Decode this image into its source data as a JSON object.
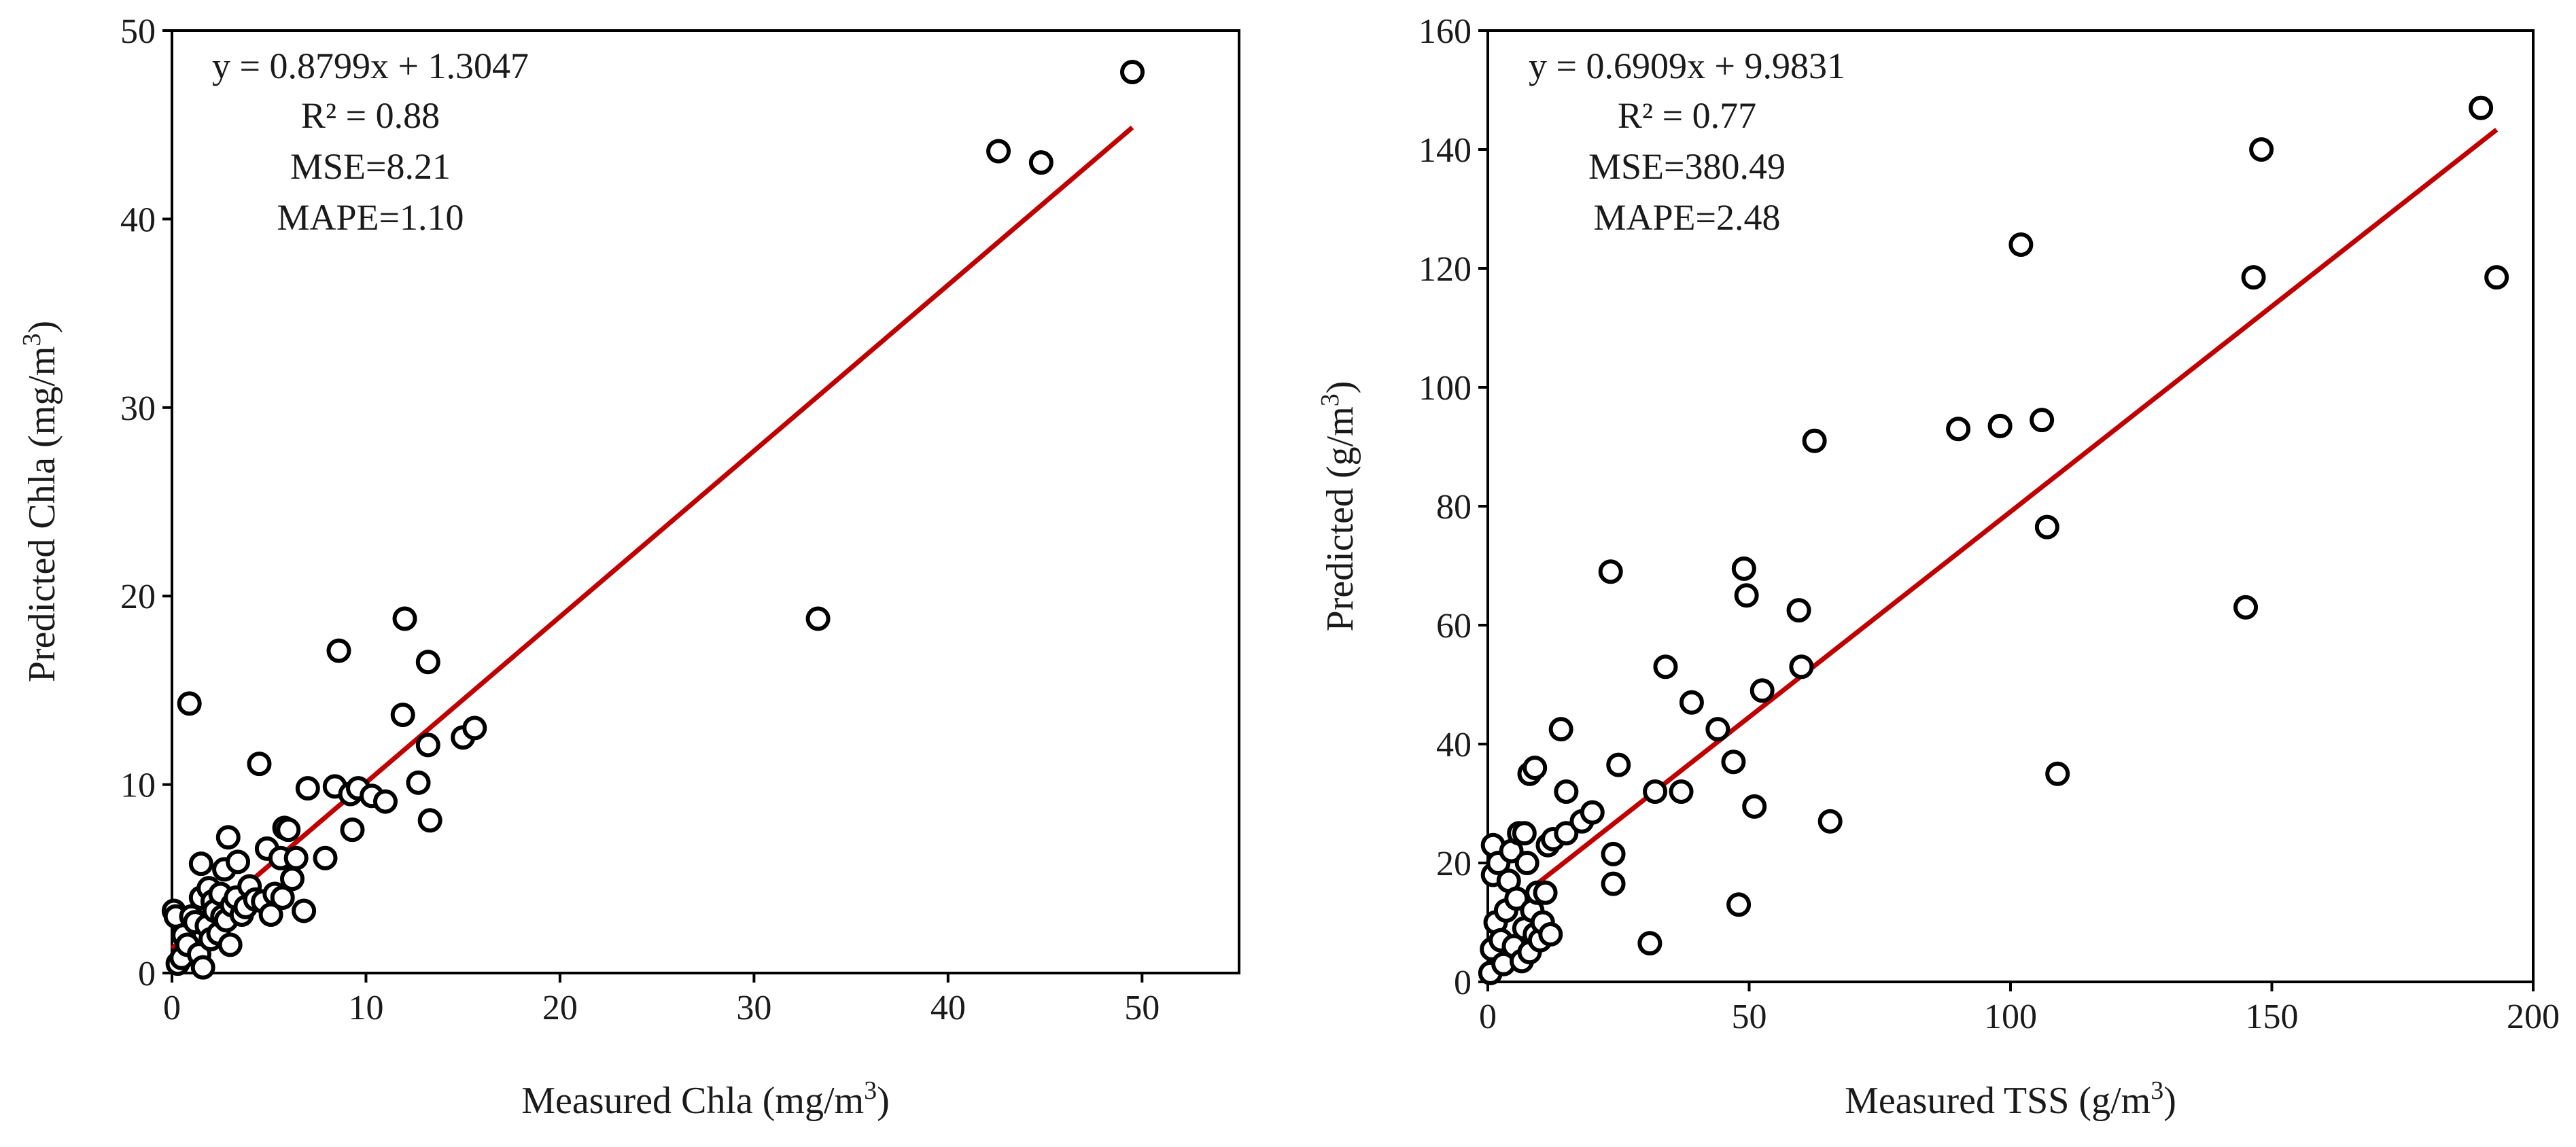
{
  "chart_data": [
    {
      "type": "scatter",
      "id": "chla",
      "xlabel": "Measured Chla (mg/m",
      "xlabel_sup": "3",
      "xlabel_end": ")",
      "ylabel": "Predicted Chla (mg/m",
      "ylabel_sup": "3",
      "ylabel_end": ")",
      "xlim": [
        0,
        55
      ],
      "ylim": [
        0,
        50
      ],
      "xticks": [
        0,
        10,
        20,
        30,
        40,
        50
      ],
      "yticks": [
        0,
        10,
        20,
        30,
        40,
        50
      ],
      "fit": {
        "slope": 0.8799,
        "intercept": 1.3047,
        "x_range": [
          0,
          49.5
        ],
        "color": "#c00000"
      },
      "annotations": [
        "y = 0.8799x + 1.3047",
        "R² = 0.88",
        "MSE=8.21",
        "MAPE=1.10"
      ],
      "points": [
        [
          0.1,
          3.3
        ],
        [
          0.2,
          3.0
        ],
        [
          0.3,
          0.5
        ],
        [
          0.5,
          0.8
        ],
        [
          0.6,
          2.0
        ],
        [
          0.8,
          1.5
        ],
        [
          1.0,
          3.0
        ],
        [
          0.9,
          14.3
        ],
        [
          1.2,
          2.7
        ],
        [
          1.4,
          1.0
        ],
        [
          1.5,
          4.0
        ],
        [
          1.5,
          5.8
        ],
        [
          1.6,
          0.3
        ],
        [
          1.8,
          2.5
        ],
        [
          1.9,
          4.5
        ],
        [
          2.0,
          1.8
        ],
        [
          2.1,
          3.8
        ],
        [
          2.2,
          3.3
        ],
        [
          2.4,
          2.1
        ],
        [
          2.5,
          4.2
        ],
        [
          2.6,
          3.0
        ],
        [
          2.7,
          5.5
        ],
        [
          2.8,
          2.8
        ],
        [
          2.9,
          7.2
        ],
        [
          3.0,
          1.5
        ],
        [
          3.1,
          3.6
        ],
        [
          3.3,
          4.0
        ],
        [
          3.4,
          5.9
        ],
        [
          3.6,
          3.1
        ],
        [
          3.8,
          3.5
        ],
        [
          4.0,
          4.6
        ],
        [
          4.3,
          3.9
        ],
        [
          4.5,
          11.1
        ],
        [
          4.7,
          3.8
        ],
        [
          4.9,
          6.6
        ],
        [
          5.1,
          3.1
        ],
        [
          5.3,
          4.2
        ],
        [
          5.6,
          6.1
        ],
        [
          5.8,
          7.7
        ],
        [
          5.7,
          4.0
        ],
        [
          6.0,
          7.6
        ],
        [
          6.2,
          5.0
        ],
        [
          6.4,
          6.1
        ],
        [
          6.8,
          3.3
        ],
        [
          7.0,
          9.8
        ],
        [
          7.9,
          6.1
        ],
        [
          8.4,
          9.9
        ],
        [
          8.6,
          17.1
        ],
        [
          9.2,
          9.5
        ],
        [
          9.3,
          7.6
        ],
        [
          9.6,
          9.8
        ],
        [
          10.3,
          9.4
        ],
        [
          11.0,
          9.1
        ],
        [
          11.9,
          13.7
        ],
        [
          12.0,
          18.8
        ],
        [
          12.7,
          10.1
        ],
        [
          13.2,
          12.1
        ],
        [
          13.2,
          16.5
        ],
        [
          13.3,
          8.1
        ],
        [
          15.0,
          12.5
        ],
        [
          15.6,
          13.0
        ],
        [
          33.3,
          18.8
        ],
        [
          42.6,
          43.6
        ],
        [
          44.8,
          43.0
        ],
        [
          49.5,
          47.8
        ]
      ]
    },
    {
      "type": "scatter",
      "id": "tss",
      "xlabel": "Measured TSS  (g/m",
      "xlabel_sup": "3",
      "xlabel_end": ")",
      "ylabel": "Predicted (g/m",
      "ylabel_sup": "3",
      "ylabel_end": ")",
      "xlim": [
        0,
        200
      ],
      "ylim": [
        0,
        160
      ],
      "xticks": [
        0,
        50,
        100,
        150,
        200
      ],
      "yticks": [
        0,
        20,
        40,
        60,
        80,
        100,
        120,
        140,
        160
      ],
      "fit": {
        "slope": 0.6909,
        "intercept": 9.9831,
        "x_range": [
          0,
          193
        ],
        "color": "#c00000"
      },
      "annotations": [
        "y = 0.6909x + 9.9831",
        "R² = 0.77",
        "MSE=380.49",
        "MAPE=2.48"
      ],
      "points": [
        [
          0.5,
          1.5
        ],
        [
          0.8,
          5.5
        ],
        [
          1.0,
          18.0
        ],
        [
          1.0,
          23.0
        ],
        [
          1.5,
          10.0
        ],
        [
          2.0,
          20.0
        ],
        [
          2.5,
          7.0
        ],
        [
          3.0,
          3.0
        ],
        [
          3.5,
          12.0
        ],
        [
          4.0,
          17.0
        ],
        [
          4.5,
          22.0
        ],
        [
          5.0,
          6.0
        ],
        [
          5.5,
          14.0
        ],
        [
          6.0,
          25.0
        ],
        [
          6.5,
          3.5
        ],
        [
          7.0,
          9.0
        ],
        [
          7.0,
          25.0
        ],
        [
          7.5,
          20.0
        ],
        [
          8.0,
          5.0
        ],
        [
          8.0,
          35.0
        ],
        [
          8.5,
          12.0
        ],
        [
          9.0,
          8.0
        ],
        [
          9.0,
          36.0
        ],
        [
          9.5,
          15.0
        ],
        [
          10.0,
          7.0
        ],
        [
          10.5,
          10.0
        ],
        [
          11.0,
          15.0
        ],
        [
          11.5,
          23.0
        ],
        [
          12.0,
          8.0
        ],
        [
          12.5,
          24.0
        ],
        [
          14.0,
          42.5
        ],
        [
          15.0,
          25.0
        ],
        [
          15.0,
          32.0
        ],
        [
          18.0,
          27.0
        ],
        [
          20.0,
          28.5
        ],
        [
          23.5,
          69.0
        ],
        [
          24.0,
          16.5
        ],
        [
          24.0,
          21.5
        ],
        [
          25.0,
          36.5
        ],
        [
          31.0,
          6.5
        ],
        [
          32.0,
          32.0
        ],
        [
          34.0,
          53.0
        ],
        [
          37.0,
          32.0
        ],
        [
          39.0,
          47.0
        ],
        [
          44.0,
          42.5
        ],
        [
          47.0,
          37.0
        ],
        [
          48.0,
          13.0
        ],
        [
          49.0,
          69.5
        ],
        [
          49.5,
          65.0
        ],
        [
          51.0,
          29.5
        ],
        [
          52.5,
          49.0
        ],
        [
          59.5,
          62.5
        ],
        [
          60.0,
          53.0
        ],
        [
          62.5,
          91.0
        ],
        [
          65.5,
          27.0
        ],
        [
          90.0,
          93.0
        ],
        [
          98.0,
          93.5
        ],
        [
          102.0,
          124.0
        ],
        [
          106.0,
          94.5
        ],
        [
          107.0,
          76.5
        ],
        [
          109.0,
          35.0
        ],
        [
          145.0,
          63.0
        ],
        [
          146.5,
          118.5
        ],
        [
          148.0,
          140.0
        ],
        [
          190.0,
          147.0
        ],
        [
          193.0,
          118.5
        ]
      ]
    }
  ]
}
